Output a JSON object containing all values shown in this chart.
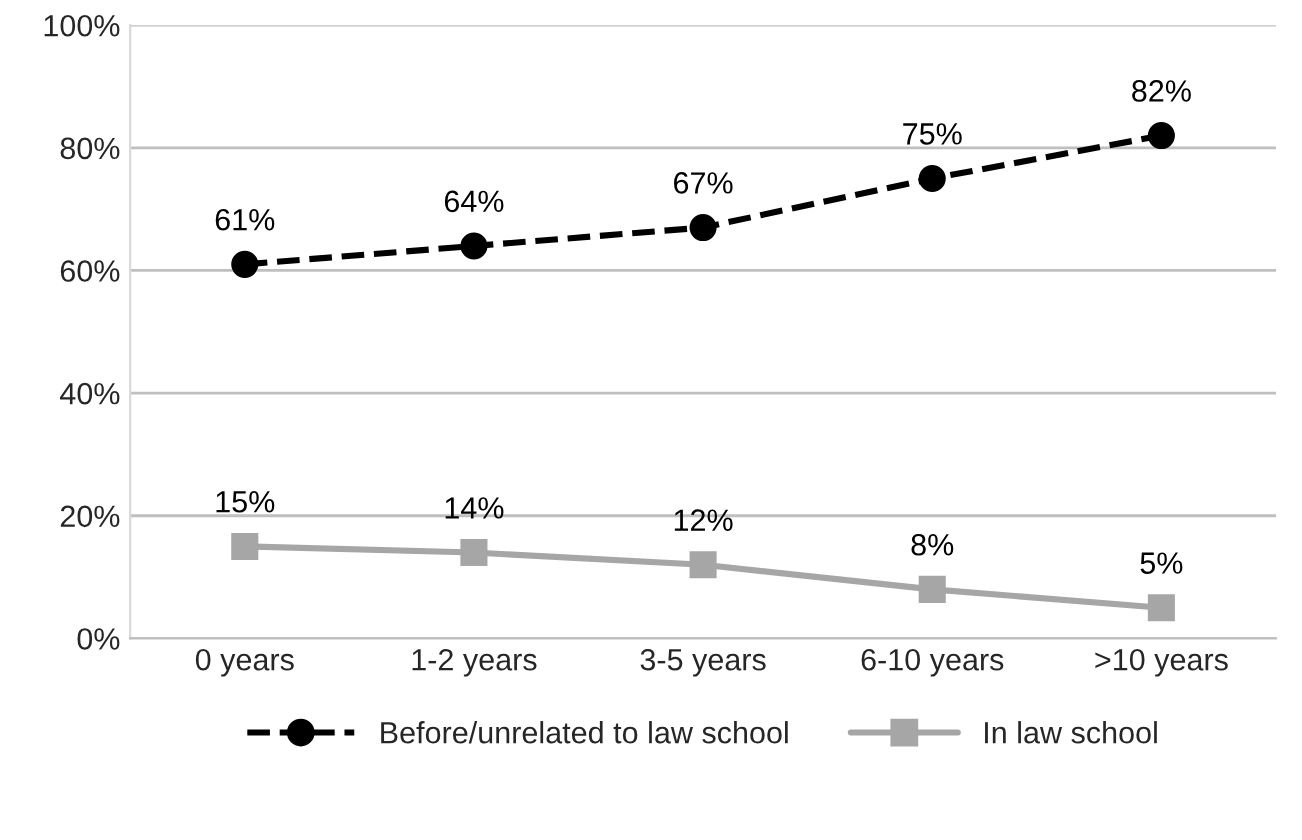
{
  "chart_data": {
    "type": "line",
    "categories": [
      "0 years",
      "1-2 years",
      "3-5 years",
      "6-10 years",
      ">10 years"
    ],
    "series": [
      {
        "name": "Before/unrelated to law school",
        "color": "#000000",
        "marker": "circle",
        "line_style": "dashed",
        "values": [
          61,
          64,
          67,
          75,
          82
        ],
        "value_labels": [
          "61%",
          "64%",
          "67%",
          "75%",
          "82%"
        ]
      },
      {
        "name": "In law school",
        "color": "#a6a6a6",
        "marker": "square",
        "line_style": "solid",
        "values": [
          15,
          14,
          12,
          8,
          5
        ],
        "value_labels": [
          "15%",
          "14%",
          "12%",
          "8%",
          "5%"
        ]
      }
    ],
    "ylim": [
      0,
      100
    ],
    "yticks": [
      {
        "value": 0,
        "label": "0%"
      },
      {
        "value": 20,
        "label": "20%"
      },
      {
        "value": 40,
        "label": "40%"
      },
      {
        "value": 60,
        "label": "60%"
      },
      {
        "value": 80,
        "label": "80%"
      },
      {
        "value": 100,
        "label": "100%"
      }
    ],
    "grid": "y",
    "legend": "bottom"
  }
}
